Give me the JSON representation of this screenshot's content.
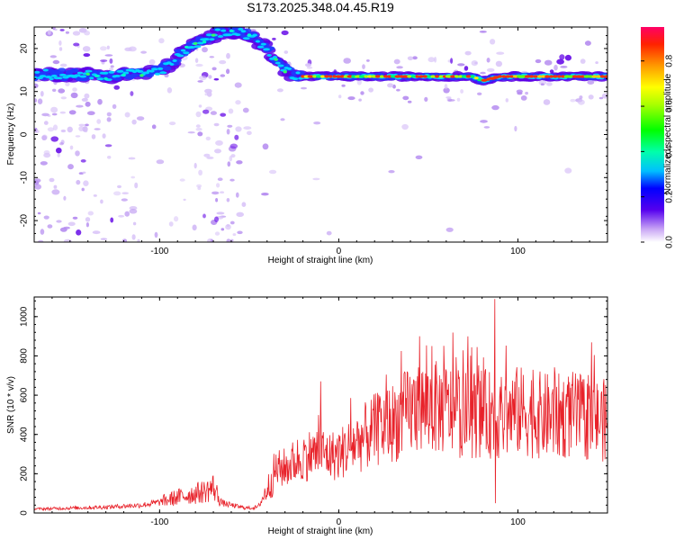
{
  "title": "S173.2025.348.04.45.R19",
  "chart_data": [
    {
      "type": "heatmap",
      "name": "spectrogram",
      "xlabel": "Height of straight line (km)",
      "ylabel": "Frequency (Hz)",
      "xlim": [
        -170,
        150
      ],
      "ylim": [
        -25,
        25
      ],
      "xticks": [
        -100,
        0,
        100
      ],
      "yticks": [
        -20,
        -10,
        0,
        10,
        20
      ],
      "ridge": {
        "x": [
          -170,
          -160,
          -150,
          -140,
          -130,
          -120,
          -110,
          -100,
          -95,
          -90,
          -85,
          -80,
          -75,
          -70,
          -65,
          -60,
          -55,
          -50,
          -45,
          -40,
          -35,
          -30,
          -25,
          -20,
          0,
          20,
          40,
          60,
          75,
          80,
          90,
          100,
          120,
          140,
          150
        ],
        "freq": [
          14,
          14,
          14,
          14,
          13.5,
          14,
          14,
          15,
          16,
          18,
          20,
          21,
          22,
          23,
          24,
          24,
          24,
          23,
          21.5,
          20,
          17,
          15,
          13.5,
          13.5,
          13.5,
          13.5,
          13.5,
          13.5,
          13.5,
          12.5,
          13.5,
          13.5,
          13.5,
          13.5,
          13.5
        ]
      }
    },
    {
      "type": "colorbar",
      "name": "amplitude-colorbar",
      "label": "Normalized spectral amplitude",
      "range": [
        0,
        0.95
      ],
      "ticks": [
        "0.0",
        "0.2",
        "0.4",
        "0.6",
        "0.8"
      ]
    },
    {
      "type": "line",
      "name": "snr",
      "xlabel": "Height of straight line (km)",
      "ylabel": "SNR (10 * v/v)",
      "xlim": [
        -170,
        150
      ],
      "ylim": [
        0,
        1100
      ],
      "xticks": [
        -100,
        0,
        100
      ],
      "yticks": [
        0,
        200,
        400,
        600,
        800,
        1000
      ],
      "color": "#e8222a",
      "x": [
        -170,
        -150,
        -130,
        -110,
        -100,
        -90,
        -80,
        -75,
        -70,
        -65,
        -60,
        -55,
        -50,
        -45,
        -40,
        -35,
        -30,
        -25,
        -20,
        -15,
        -10,
        -5,
        0,
        10,
        20,
        30,
        40,
        50,
        60,
        70,
        80,
        85,
        87,
        90,
        100,
        110,
        120,
        130,
        140,
        150
      ],
      "y": [
        20,
        25,
        30,
        40,
        55,
        80,
        100,
        110,
        130,
        50,
        40,
        30,
        25,
        30,
        120,
        220,
        230,
        260,
        290,
        300,
        310,
        290,
        300,
        360,
        420,
        460,
        520,
        540,
        530,
        500,
        510,
        500,
        500,
        480,
        520,
        500,
        490,
        500,
        480,
        470
      ],
      "spikes": [
        {
          "x": 87,
          "y": 1090
        },
        {
          "x": 87.5,
          "y": 50
        },
        {
          "x": 45,
          "y": 900
        },
        {
          "x": -10,
          "y": 670
        },
        {
          "x": 52,
          "y": 850
        },
        {
          "x": -70,
          "y": 190
        }
      ]
    }
  ]
}
